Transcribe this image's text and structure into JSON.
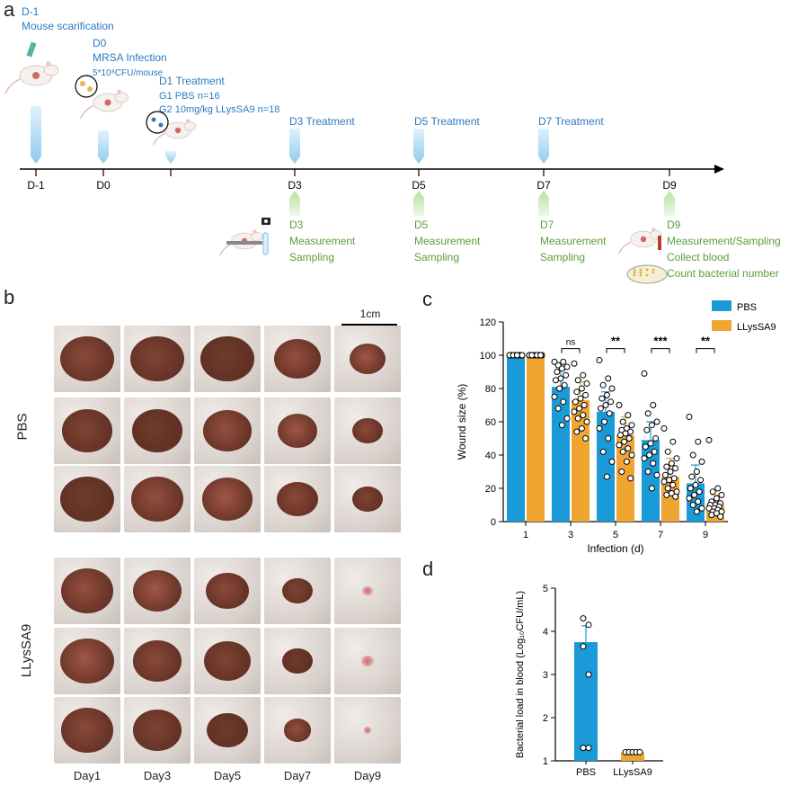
{
  "panels": {
    "a": "a",
    "b": "b",
    "c": "c",
    "d": "d"
  },
  "timeline": {
    "colors": {
      "treatment": "#2b7bbf",
      "measure": "#5a9e3a",
      "axis": "#000000",
      "arrow_blue": "#a9d8f2",
      "arrow_green": "#c7e6b4"
    },
    "events_top": [
      {
        "tick": "D-1",
        "lines": [
          "D-1",
          "Mouse scarification"
        ]
      },
      {
        "tick": "D0",
        "lines": [
          "D0",
          "MRSA Infection",
          "5*10⁸CFU/mouse"
        ]
      },
      {
        "tick": "",
        "lines": [
          "D1 Treatment",
          "G1 PBS  n=16",
          "G2 10mg/kg LLysSA9 n=18"
        ]
      },
      {
        "tick": "D3",
        "lines": [
          "D3 Treatment"
        ]
      },
      {
        "tick": "D5",
        "lines": [
          "D5 Treatment"
        ]
      },
      {
        "tick": "D7",
        "lines": [
          "D7 Treatment"
        ]
      },
      {
        "tick": "D9",
        "lines": []
      }
    ],
    "events_bottom": [
      {
        "tick": "D3",
        "lines": [
          "D3",
          "Measurement",
          "Sampling"
        ]
      },
      {
        "tick": "D5",
        "lines": [
          "D5",
          "Measurement",
          "Sampling"
        ]
      },
      {
        "tick": "D7",
        "lines": [
          "D7",
          "Measurement",
          "Sampling"
        ]
      },
      {
        "tick": "D9",
        "lines": [
          "D9",
          "Measurement/Sampling",
          "Collect blood",
          "Count bacterial number"
        ]
      }
    ],
    "icons": [
      "mouse-scratch-icon",
      "mouse-injection-icon",
      "mouse-treatment-icon",
      "camera-measure-icon",
      "blood-tube-icon",
      "petri-dish-icon"
    ]
  },
  "photos": {
    "scale_label": "1cm",
    "group_labels": [
      "PBS",
      "LLysSA9"
    ],
    "day_labels": [
      "Day1",
      "Day3",
      "Day5",
      "Day7",
      "Day9"
    ]
  },
  "chart_data": [
    {
      "type": "bar",
      "panel": "c",
      "xlabel": "Infection (d)",
      "ylabel": "Wound size (%)",
      "categories": [
        "1",
        "3",
        "5",
        "7",
        "9"
      ],
      "ylim": [
        0,
        120
      ],
      "yticks": [
        0,
        20,
        40,
        60,
        80,
        100,
        120
      ],
      "legend": "top-right",
      "series": [
        {
          "name": "PBS",
          "color": "#1a9bd7",
          "values": [
            100,
            81,
            66,
            49,
            23
          ],
          "errors": [
            0,
            10,
            12,
            11,
            11
          ],
          "points": [
            [
              100,
              100,
              100,
              100,
              100,
              100,
              100,
              100,
              100,
              100,
              100,
              100,
              100,
              100,
              100,
              100
            ],
            [
              96,
              96,
              94,
              93,
              92,
              90,
              88,
              86,
              85,
              82,
              80,
              75,
              72,
              68,
              62,
              58
            ],
            [
              97,
              86,
              82,
              80,
              76,
              74,
              72,
              70,
              68,
              65,
              60,
              56,
              50,
              42,
              36,
              27
            ],
            [
              89,
              70,
              65,
              60,
              58,
              55,
              50,
              47,
              45,
              42,
              40,
              38,
              35,
              30,
              28,
              20
            ],
            [
              63,
              48,
              40,
              36,
              30,
              27,
              25,
              22,
              20,
              18,
              16,
              14,
              12,
              10,
              8,
              6
            ]
          ]
        },
        {
          "name": "LLysSA9",
          "color": "#f0a531",
          "values": [
            100,
            73,
            52,
            27,
            10
          ],
          "errors": [
            0,
            11,
            11,
            11,
            6
          ],
          "points": [
            [
              100,
              100,
              100,
              100,
              100,
              100,
              100,
              100,
              100,
              100,
              100,
              100,
              100,
              100,
              100,
              100,
              100,
              100
            ],
            [
              95,
              88,
              85,
              83,
              80,
              78,
              76,
              74,
              72,
              70,
              68,
              66,
              64,
              62,
              60,
              56,
              54,
              50
            ],
            [
              70,
              64,
              60,
              58,
              56,
              55,
              54,
              53,
              52,
              50,
              48,
              46,
              44,
              42,
              40,
              36,
              30,
              26
            ],
            [
              56,
              48,
              42,
              38,
              35,
              33,
              32,
              30,
              28,
              26,
              25,
              24,
              22,
              20,
              18,
              17,
              16,
              15
            ],
            [
              49,
              20,
              18,
              16,
              14,
              12,
              11,
              10,
              10,
              9,
              8,
              8,
              7,
              6,
              6,
              5,
              4,
              3
            ]
          ]
        }
      ],
      "significance": [
        "",
        "ns",
        "**",
        "***",
        "**"
      ]
    },
    {
      "type": "bar",
      "panel": "d",
      "xlabel": "",
      "ylabel": "Bacterial load in blood (Log₁₀CFU/mL)",
      "categories": [
        "PBS",
        "LLysSA9"
      ],
      "ylim": [
        1,
        5
      ],
      "yticks": [
        1,
        2,
        3,
        4,
        5
      ],
      "values": [
        3.75,
        1.2
      ],
      "errors": [
        0.38,
        0.03
      ],
      "colors": [
        "#1a9bd7",
        "#f0a531"
      ],
      "points": [
        [
          4.3,
          4.15,
          3.65,
          3.0,
          1.3,
          1.3
        ],
        [
          1.2,
          1.2,
          1.2,
          1.2,
          1.2
        ]
      ]
    }
  ]
}
